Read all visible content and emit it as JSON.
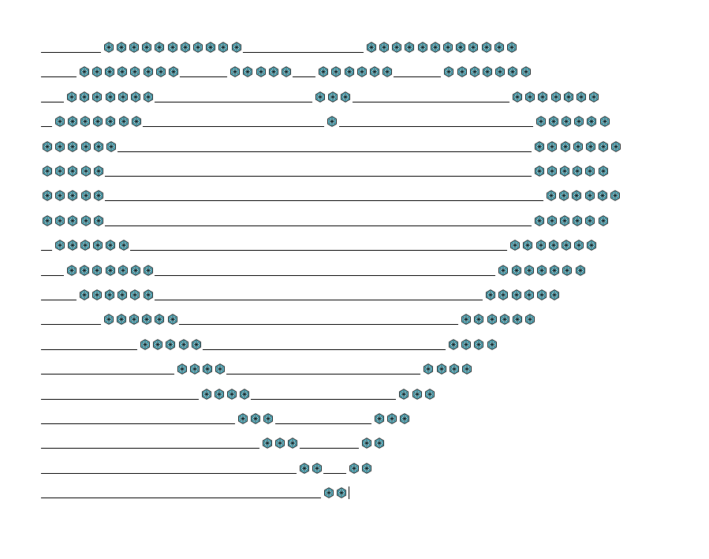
{
  "document": {
    "glyph": "snowflake-icon",
    "colors": {
      "glyph_fill": "#5bc3d6",
      "glyph_stroke": "#1a1a1a",
      "underline": "#000000"
    },
    "rows": [
      {
        "segments": [
          [
            "line",
            5
          ],
          [
            "icons",
            11
          ],
          [
            "line",
            10
          ],
          [
            "icons",
            12
          ]
        ]
      },
      {
        "segments": [
          [
            "line",
            3
          ],
          [
            "icons",
            8
          ],
          [
            "line",
            4
          ],
          [
            "icons",
            5
          ],
          [
            "line",
            2
          ],
          [
            "icons",
            6
          ],
          [
            "line",
            4
          ],
          [
            "icons",
            7
          ]
        ]
      },
      {
        "segments": [
          [
            "line",
            2
          ],
          [
            "icons",
            7
          ],
          [
            "line",
            13
          ],
          [
            "icons",
            3
          ],
          [
            "line",
            13
          ],
          [
            "icons",
            7
          ]
        ]
      },
      {
        "segments": [
          [
            "line",
            1
          ],
          [
            "icons",
            7
          ],
          [
            "line",
            15
          ],
          [
            "icons",
            1
          ],
          [
            "line",
            16
          ],
          [
            "icons",
            6
          ]
        ]
      },
      {
        "segments": [
          [
            "icons",
            6
          ],
          [
            "line",
            34
          ],
          [
            "icons",
            7
          ]
        ]
      },
      {
        "segments": [
          [
            "icons",
            5
          ],
          [
            "line",
            35
          ],
          [
            "icons",
            6
          ]
        ]
      },
      {
        "segments": [
          [
            "icons",
            5
          ],
          [
            "line",
            36
          ],
          [
            "icons",
            6
          ]
        ]
      },
      {
        "segments": [
          [
            "icons",
            5
          ],
          [
            "line",
            35
          ],
          [
            "icons",
            6
          ]
        ]
      },
      {
        "segments": [
          [
            "line",
            1
          ],
          [
            "icons",
            6
          ],
          [
            "line",
            31
          ],
          [
            "icons",
            7
          ]
        ]
      },
      {
        "segments": [
          [
            "line",
            2
          ],
          [
            "icons",
            7
          ],
          [
            "line",
            28
          ],
          [
            "icons",
            7
          ]
        ]
      },
      {
        "segments": [
          [
            "line",
            3
          ],
          [
            "icons",
            6
          ],
          [
            "line",
            27
          ],
          [
            "icons",
            6
          ]
        ]
      },
      {
        "segments": [
          [
            "line",
            5
          ],
          [
            "icons",
            6
          ],
          [
            "line",
            23
          ],
          [
            "icons",
            6
          ]
        ]
      },
      {
        "segments": [
          [
            "line",
            8
          ],
          [
            "icons",
            5
          ],
          [
            "line",
            20
          ],
          [
            "icons",
            4
          ]
        ]
      },
      {
        "segments": [
          [
            "line",
            11
          ],
          [
            "icons",
            4
          ],
          [
            "line",
            16
          ],
          [
            "icons",
            4
          ]
        ]
      },
      {
        "segments": [
          [
            "line",
            13
          ],
          [
            "icons",
            4
          ],
          [
            "line",
            12
          ],
          [
            "icons",
            3
          ]
        ]
      },
      {
        "segments": [
          [
            "line",
            16
          ],
          [
            "icons",
            3
          ],
          [
            "line",
            8
          ],
          [
            "icons",
            3
          ]
        ]
      },
      {
        "segments": [
          [
            "line",
            18
          ],
          [
            "icons",
            3
          ],
          [
            "line",
            5
          ],
          [
            "icons",
            2
          ]
        ]
      },
      {
        "segments": [
          [
            "line",
            21
          ],
          [
            "icons",
            2
          ],
          [
            "line",
            2
          ],
          [
            "icons",
            2
          ]
        ]
      },
      {
        "segments": [
          [
            "line",
            23
          ],
          [
            "icons",
            2
          ],
          [
            "caret",
            1
          ]
        ]
      }
    ]
  }
}
